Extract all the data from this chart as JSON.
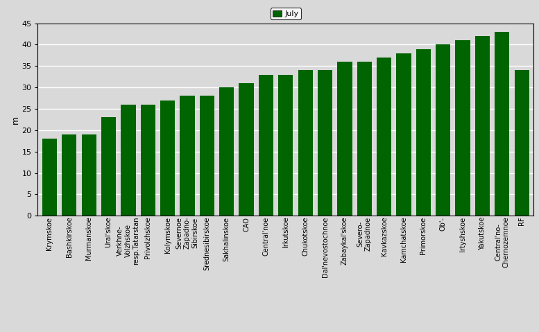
{
  "categories": [
    "Krymskoe",
    "Bashkirskoe",
    "Murmanskoe",
    "Ural'skoe",
    "Verkhne-\nVolzhskoe\nresp.Tatarstan",
    "Privolzhskoe",
    "Kolymskoe",
    "Severnoe\nZapadno-\nSibirskoe",
    "Srednesibirskoe",
    "Sakhalinskoe",
    "CAO",
    "Central'noe",
    "Irkutskoe",
    "Chukotskoe",
    "Dal'nevostochnoe",
    "Zabaykal'skoe",
    "Severo-\nZapadnoe",
    "Kavkazskoe",
    "Kamchatskoe",
    "Primorskoe",
    "Ob'-",
    "Irtyshskoe",
    "Yakutskoe",
    "Central'no-\nChernozemnoe",
    "RF"
  ],
  "values": [
    18,
    19,
    19,
    23,
    26,
    26,
    27,
    28,
    28,
    30,
    31,
    33,
    33,
    34,
    34,
    36,
    36,
    37,
    38,
    39,
    40,
    41,
    42,
    43,
    34
  ],
  "bar_color": "#006400",
  "legend_label": "July",
  "legend_color": "#006400",
  "ylabel": "m",
  "ylim": [
    0,
    45
  ],
  "yticks": [
    0,
    5,
    10,
    15,
    20,
    25,
    30,
    35,
    40,
    45
  ],
  "background_color": "#d9d9d9",
  "plot_bg_color": "#d9d9d9",
  "grid_color": "#ffffff",
  "tick_fontsize": 7,
  "ylabel_fontsize": 9
}
